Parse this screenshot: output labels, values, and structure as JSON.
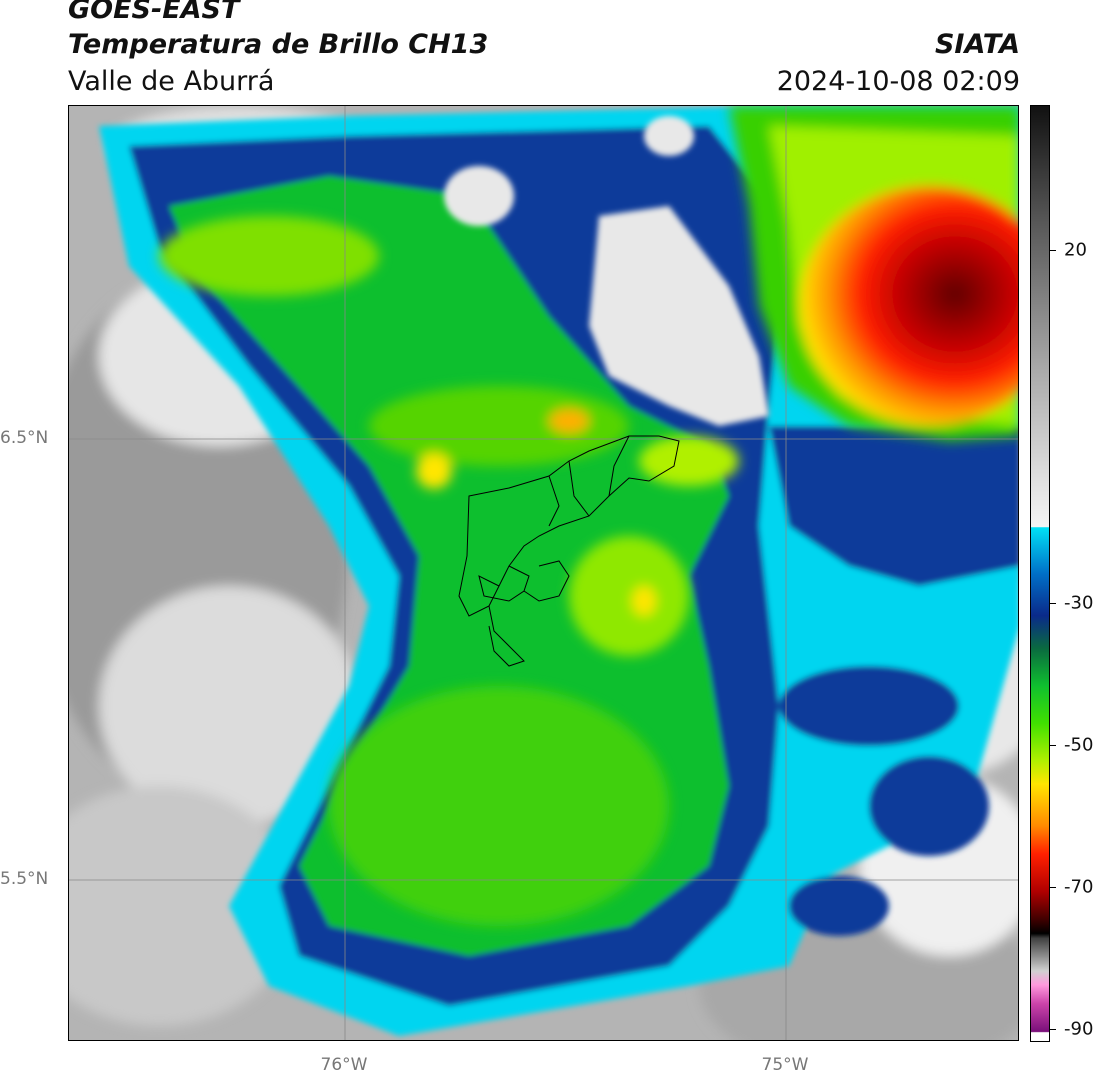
{
  "header": {
    "satellite": "GOES-EAST",
    "product": "Temperatura de Brillo CH13",
    "region": "Valle de Aburrá",
    "agency": "SIATA",
    "datetime": "2024-10-08 02:09"
  },
  "map": {
    "lat_labels": [
      "6.5°N",
      "5.5°N"
    ],
    "lon_labels": [
      "76°W",
      "75°W"
    ],
    "extent": {
      "lon_min": -76.63,
      "lon_max": -74.53,
      "lat_min": 5.2,
      "lat_max": 7.25
    }
  },
  "colorbar": {
    "ticks": [
      20,
      -30,
      -50,
      -70,
      -90
    ],
    "range": [
      -92,
      30
    ],
    "colors": {
      "warm_gray_top": "#111111",
      "light_gray": "#e8e8e8",
      "cyan": "#00d5f0",
      "blue": "#0a3a9a",
      "green": "#0fbf2f",
      "yellow_green": "#c8ff00",
      "yellow": "#ffe600",
      "orange": "#ff8a00",
      "red": "#e00000",
      "dark_red": "#600000",
      "black": "#000000",
      "pink": "#ee88cc",
      "purple": "#8a1a8a"
    }
  }
}
